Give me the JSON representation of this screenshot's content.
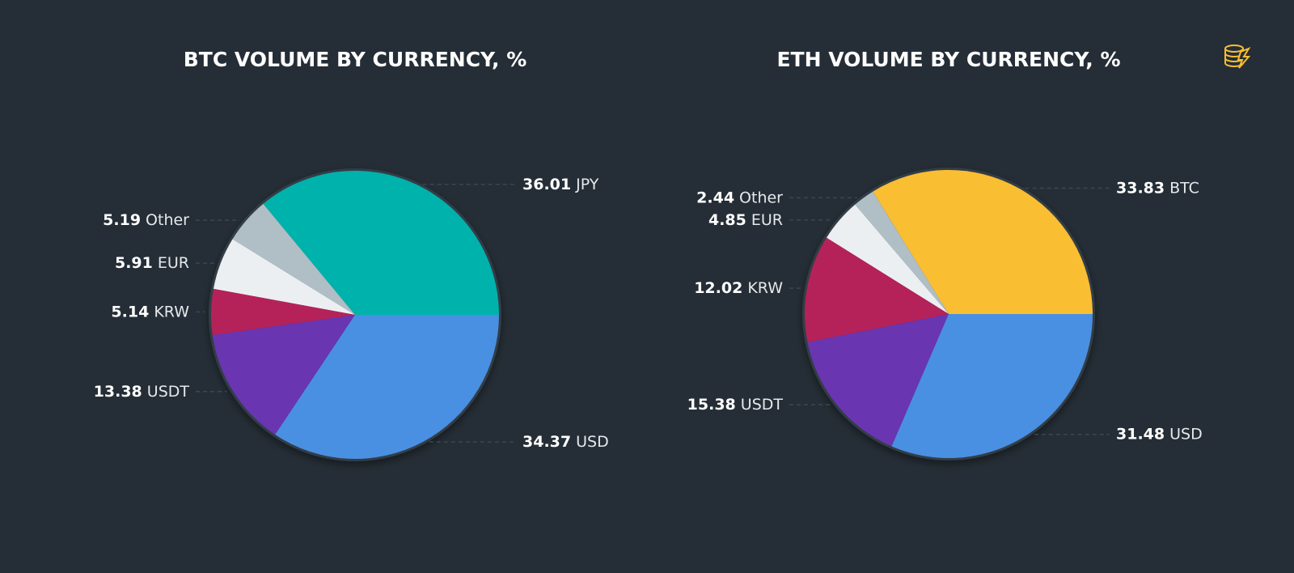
{
  "chart_data": [
    {
      "type": "pie",
      "title": "BTC VOLUME BY CURRENCY, %",
      "categories": [
        "JPY",
        "Other",
        "EUR",
        "KRW",
        "USDT",
        "USD"
      ],
      "values": [
        36.01,
        5.19,
        5.91,
        5.14,
        13.38,
        34.37
      ],
      "colors": [
        "#00b2ac",
        "#b0bec5",
        "#eceff1",
        "#b5215a",
        "#6a35b0",
        "#4a90e2"
      ]
    },
    {
      "type": "pie",
      "title": "ETH VOLUME BY CURRENCY, %",
      "categories": [
        "BTC",
        "Other",
        "EUR",
        "KRW",
        "USDT",
        "USD"
      ],
      "values": [
        33.83,
        2.44,
        4.85,
        12.02,
        15.38,
        31.48
      ],
      "colors": [
        "#f9be30",
        "#b0bec5",
        "#eceff1",
        "#b5215a",
        "#6a35b0",
        "#4a90e2"
      ]
    }
  ]
}
